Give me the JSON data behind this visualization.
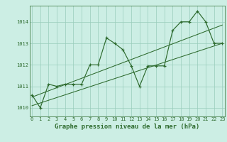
{
  "title": "Graphe pression niveau de la mer (hPa)",
  "xlabel_hours": [
    0,
    1,
    2,
    3,
    4,
    5,
    6,
    7,
    8,
    9,
    10,
    11,
    12,
    13,
    14,
    15,
    16,
    17,
    18,
    19,
    20,
    21,
    22,
    23
  ],
  "pressure_main": [
    1010.6,
    1010.0,
    1011.1,
    1011.0,
    1011.1,
    1011.1,
    1011.1,
    1012.0,
    1012.0,
    1013.25,
    1013.0,
    1012.7,
    1011.95,
    1011.0,
    1011.95,
    1011.95,
    1011.95,
    1013.6,
    1014.0,
    1014.0,
    1014.5,
    1014.0,
    1013.0,
    1013.0
  ],
  "trend1_x": [
    0,
    23
  ],
  "trend1_y": [
    1010.5,
    1013.85
  ],
  "trend2_x": [
    0,
    23
  ],
  "trend2_y": [
    1010.1,
    1013.0
  ],
  "ylim": [
    1009.6,
    1014.75
  ],
  "xlim": [
    -0.3,
    23.3
  ],
  "yticks": [
    1010,
    1011,
    1012,
    1013,
    1014
  ],
  "bg_color": "#cceee4",
  "line_color": "#2d6a2d",
  "grid_color": "#99ccbb",
  "title_fontsize": 6.5,
  "tick_fontsize": 5.0
}
